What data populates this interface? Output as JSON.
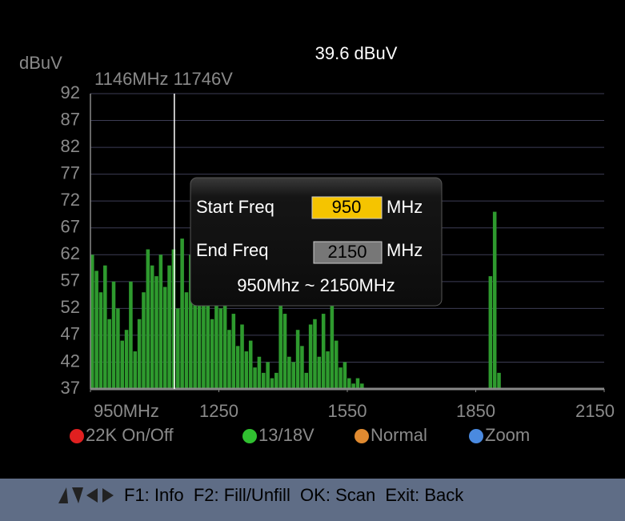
{
  "level": "39.6 dBuV",
  "unit": "dBuV",
  "marker": {
    "freq": 1146,
    "label": "1146MHz 11746V"
  },
  "spectrum": {
    "type": "bar",
    "color": "#2e9a2e",
    "xlim": [
      950,
      2150
    ],
    "xticks": [
      {
        "value": 950,
        "label": "950MHz"
      },
      1250,
      1550,
      1850,
      2150
    ],
    "ylim": [
      37,
      92
    ],
    "yticks": [
      92,
      87,
      82,
      77,
      72,
      67,
      62,
      57,
      52,
      47,
      42,
      37
    ],
    "grid": true,
    "x": [
      950,
      960,
      970,
      980,
      990,
      1000,
      1010,
      1020,
      1030,
      1040,
      1050,
      1060,
      1070,
      1080,
      1090,
      1100,
      1110,
      1120,
      1130,
      1140,
      1150,
      1160,
      1170,
      1180,
      1190,
      1200,
      1210,
      1220,
      1230,
      1240,
      1250,
      1260,
      1270,
      1280,
      1290,
      1300,
      1310,
      1320,
      1330,
      1340,
      1350,
      1360,
      1370,
      1380,
      1390,
      1400,
      1410,
      1420,
      1430,
      1440,
      1450,
      1460,
      1470,
      1480,
      1490,
      1500,
      1510,
      1520,
      1530,
      1540,
      1550,
      1560,
      1570,
      1580,
      1880,
      1890,
      1900
    ],
    "values": [
      62,
      59,
      55,
      60,
      50,
      57,
      52,
      46,
      48,
      57,
      44,
      50,
      55,
      63,
      60,
      58,
      62,
      56,
      60,
      63,
      52,
      65,
      55,
      62,
      56,
      58,
      54,
      55,
      50,
      57,
      52,
      53,
      48,
      51,
      45,
      49,
      44,
      46,
      41,
      43,
      40,
      42,
      39,
      40,
      53,
      51,
      43,
      42,
      48,
      45,
      40,
      49,
      50,
      43,
      51,
      44,
      53,
      46,
      41,
      42,
      39,
      38,
      39,
      38,
      58,
      70,
      40
    ]
  },
  "dialog": {
    "start_label": "Start Freq",
    "start_value": "950",
    "start_unit": "MHz",
    "end_label": "End Freq",
    "end_value": "2150",
    "end_unit": "MHz",
    "range": "950Mhz ~ 2150MHz"
  },
  "legend": [
    "22K On/Off",
    "13/18V",
    "Normal",
    "Zoom"
  ],
  "footer": "F1: Info  F2: Fill/Unfill  OK: Scan  Exit: Back"
}
